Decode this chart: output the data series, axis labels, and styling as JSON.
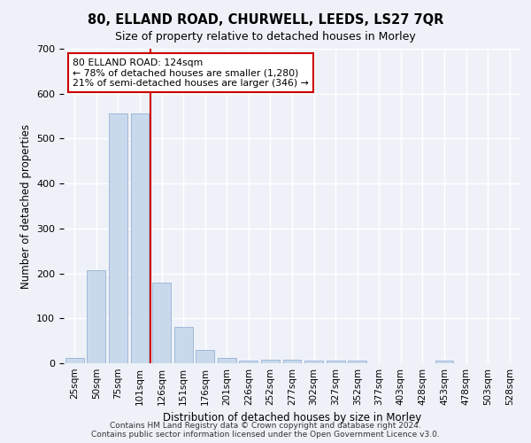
{
  "title": "80, ELLAND ROAD, CHURWELL, LEEDS, LS27 7QR",
  "subtitle": "Size of property relative to detached houses in Morley",
  "xlabel": "Distribution of detached houses by size in Morley",
  "ylabel": "Number of detached properties",
  "bar_color": "#c9d9ec",
  "bar_edgecolor": "#a0b8d8",
  "categories": [
    "25sqm",
    "50sqm",
    "75sqm",
    "101sqm",
    "126sqm",
    "151sqm",
    "176sqm",
    "201sqm",
    "226sqm",
    "252sqm",
    "277sqm",
    "302sqm",
    "327sqm",
    "352sqm",
    "377sqm",
    "403sqm",
    "428sqm",
    "453sqm",
    "478sqm",
    "503sqm",
    "528sqm"
  ],
  "values": [
    11,
    207,
    557,
    557,
    180,
    80,
    29,
    11,
    6,
    8,
    7,
    6,
    6,
    6,
    0,
    0,
    0,
    6,
    0,
    0,
    0
  ],
  "ylim": [
    0,
    700
  ],
  "yticks": [
    0,
    100,
    200,
    300,
    400,
    500,
    600,
    700
  ],
  "vline_index": 4,
  "vline_color": "#cc0000",
  "annotation_text": "80 ELLAND ROAD: 124sqm\n← 78% of detached houses are smaller (1,280)\n21% of semi-detached houses are larger (346) →",
  "annotation_box_color": "#ffffff",
  "annotation_box_edgecolor": "#cc0000",
  "footnote": "Contains HM Land Registry data © Crown copyright and database right 2024.\nContains public sector information licensed under the Open Government Licence v3.0.",
  "bg_color": "#eef2f8",
  "grid_color": "#ffffff"
}
